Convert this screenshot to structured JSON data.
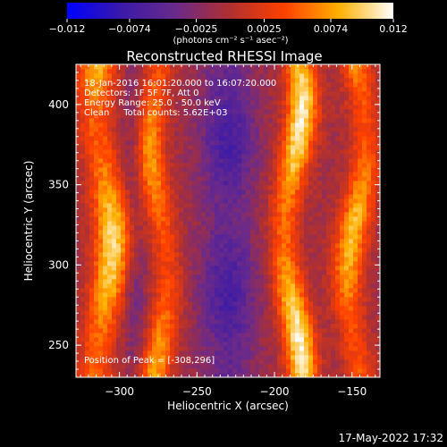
{
  "chart_data": {
    "type": "heatmap",
    "title": "Reconstructed RHESSI Image",
    "xlabel": "Heliocentric X (arcsec)",
    "ylabel": "Heliocentric Y (arcsec)",
    "xlim": [
      -328,
      -132
    ],
    "ylim": [
      230,
      425
    ],
    "x_ticks": [
      -300,
      -250,
      -200,
      -150
    ],
    "y_ticks": [
      250,
      300,
      350,
      400
    ],
    "x_tick_labels": [
      "−300",
      "−250",
      "−200",
      "−150"
    ],
    "y_tick_labels": [
      "250",
      "300",
      "350",
      "400"
    ],
    "colorbar": {
      "min": -0.012,
      "max": 0.012,
      "ticks": [
        -0.012,
        -0.0074,
        -0.0025,
        0.0025,
        0.0074,
        0.012
      ],
      "tick_labels": [
        "−0.012",
        "−0.0074",
        "−0.0025",
        "0.0025",
        "0.0074",
        "0.012"
      ],
      "units_label": "(photons cm⁻² s⁻¹ asec⁻²)"
    },
    "annotations": [
      "18-Jan-2016 16:01:20.000 to 16:07:20.000",
      "Detectors: 1F 5F 7F, Att 0",
      "Energy Range: 25.0 - 50.0 keV",
      "Clean     Total counts: 5.62E+03"
    ],
    "peak_text": "Position of Peak = [-308,296]",
    "peak_position": [
      -308,
      296
    ],
    "ridges": [
      {
        "x": -310,
        "width": 12,
        "amplitude": 0.011
      },
      {
        "x": -275,
        "width": 10,
        "amplitude": 0.0085
      },
      {
        "x": -188,
        "width": 10,
        "amplitude": 0.012
      },
      {
        "x": -147,
        "width": 10,
        "amplitude": 0.0095
      }
    ],
    "troughs": [
      {
        "x": -230,
        "width": 18,
        "amplitude": -0.006
      },
      {
        "x": -290,
        "width": 8,
        "amplitude": -0.003
      }
    ],
    "colors": {
      "background": "#000000",
      "colormap": [
        "#0000ff",
        "#3a1aa8",
        "#6a2a8a",
        "#b03030",
        "#ff4000",
        "#ffb000",
        "#ffffff"
      ]
    }
  },
  "footer": {
    "timestamp": "17-May-2022 17:32"
  }
}
